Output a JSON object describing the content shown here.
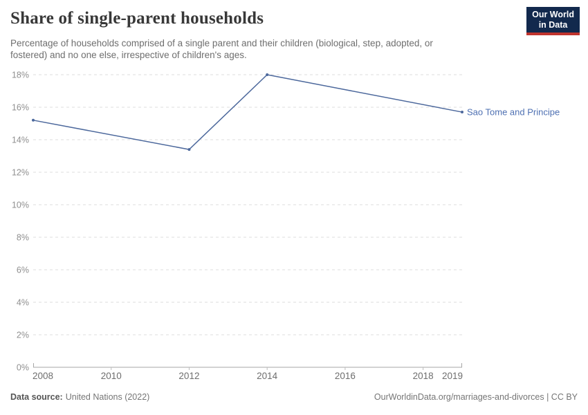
{
  "header": {
    "title": "Share of single-parent households",
    "subtitle_line1": "Percentage of households comprised of a single parent and their children (biological, step, adopted, or",
    "subtitle_line2": "fostered) and no one else, irrespective of children's ages.",
    "logo": {
      "line1": "Our World",
      "line2": "in Data",
      "bg_color": "#12294d",
      "accent_color": "#c0342e"
    }
  },
  "chart_data": {
    "type": "line",
    "title": "Share of single-parent households",
    "x": [
      2008,
      2012,
      2014,
      2019
    ],
    "series": [
      {
        "name": "Sao Tome and Principe",
        "values": [
          15.2,
          13.4,
          18.0,
          15.7
        ],
        "color": "#4c689c",
        "label_color": "#4e70b2"
      }
    ],
    "xlabel": "",
    "ylabel": "",
    "xlim": [
      2008,
      2019
    ],
    "ylim": [
      0,
      18
    ],
    "ytick_step": 2,
    "ytick_suffix": "%",
    "xticks": [
      2008,
      2010,
      2012,
      2014,
      2016,
      2018,
      2019
    ],
    "grid": "horizontal-dashed",
    "legend_position": "end-of-line-label"
  },
  "footer": {
    "source_label": "Data source:",
    "source_value": "United Nations (2022)",
    "right_text": "OurWorldinData.org/marriages-and-divorces | CC BY"
  }
}
